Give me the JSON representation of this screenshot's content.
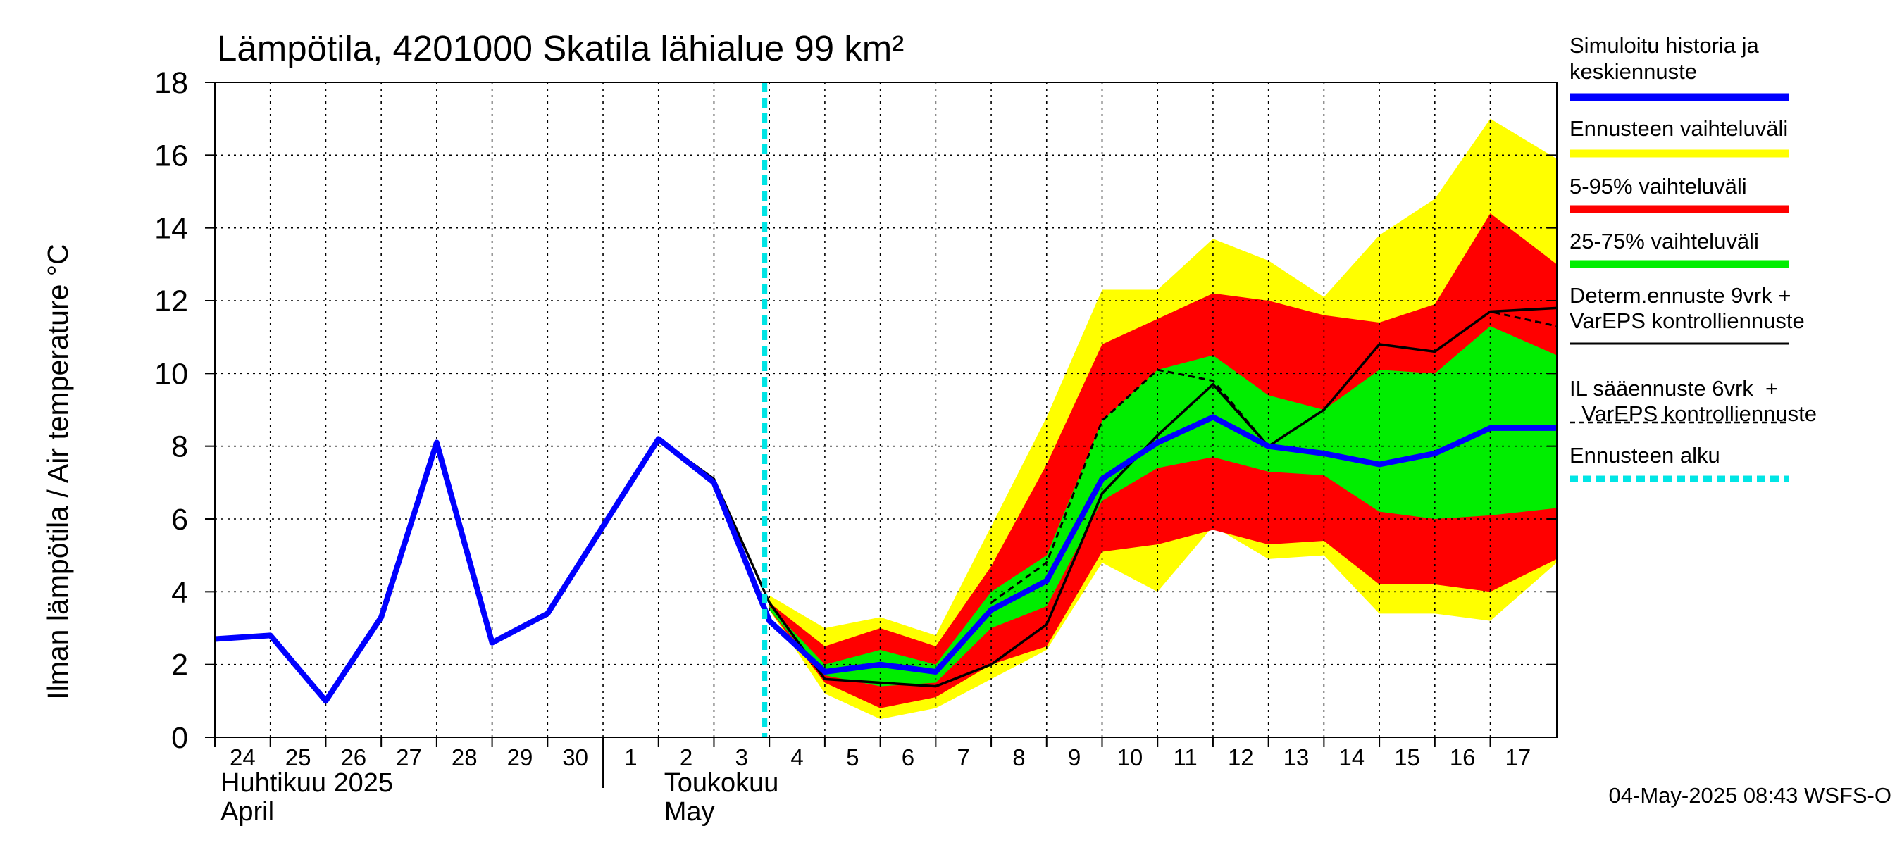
{
  "chart_data": {
    "type": "area",
    "title": "Lämpötila, 4201000 Skatila lähialue 99 km²",
    "ylabel": "Ilman lämpötila / Air temperature    °C",
    "ylim": [
      0,
      18
    ],
    "yticks": [
      "0",
      "2",
      "4",
      "6",
      "8",
      "10",
      "12",
      "14",
      "16",
      "18"
    ],
    "xlim": [
      0,
      24.2
    ],
    "day_labels": [
      "24",
      "25",
      "26",
      "27",
      "28",
      "29",
      "30",
      "1",
      "2",
      "3",
      "4",
      "5",
      "6",
      "7",
      "8",
      "9",
      "10",
      "11",
      "12",
      "13",
      "14",
      "15",
      "16",
      "17"
    ],
    "month_labels": [
      {
        "fi": "Huhtikuu  2025",
        "en": "April",
        "day_index": 0
      },
      {
        "fi": "Toukokuu",
        "en": "May",
        "day_index": 8
      }
    ],
    "forecast_start": 10,
    "grid": true,
    "legend_position": "right",
    "legend": [
      {
        "label": "Simuloitu historia ja\nkeskiennuste",
        "color": "#0000ff",
        "style": "thick"
      },
      {
        "label": "Ennusteen vaihteluväli",
        "color": "#ffff00",
        "style": "thick"
      },
      {
        "label": "5-95% vaihteluväli",
        "color": "#ff0000",
        "style": "thick"
      },
      {
        "label": "25-75% vaihteluväli",
        "color": "#00ee00",
        "style": "thick"
      },
      {
        "label": "Determ.ennuste 9vrk +\nVarEPS kontrolliennuste",
        "color": "#000000",
        "style": "thin"
      },
      {
        "label": "IL sääennuste 6vrk  +\n  VarEPS kontrolliennuste",
        "color": "#000000",
        "style": "dashed"
      },
      {
        "label": "Ennusteen alku",
        "color": "#00e5e5",
        "style": "dotted"
      }
    ],
    "colors": {
      "full_range": "#ffff00",
      "p5_95": "#ff0000",
      "p25_75": "#00ee00",
      "median": "#0000ff",
      "forecast_start": "#00e5e5"
    },
    "bands": {
      "x": [
        10,
        11,
        12,
        13,
        14,
        15,
        16,
        17,
        18,
        19,
        20,
        21,
        22,
        23,
        24.2
      ],
      "full_lower": [
        3.5,
        1.2,
        0.5,
        0.8,
        1.6,
        2.4,
        4.8,
        4.0,
        5.8,
        4.9,
        5.0,
        3.4,
        3.4,
        3.2,
        4.8
      ],
      "full_upper": [
        3.9,
        3.0,
        3.3,
        2.8,
        5.8,
        8.8,
        12.3,
        12.3,
        13.7,
        13.1,
        12.1,
        13.8,
        14.8,
        17.0,
        15.9
      ],
      "p5": [
        3.5,
        1.5,
        0.8,
        1.1,
        2.0,
        2.5,
        5.1,
        5.3,
        5.7,
        5.3,
        5.4,
        4.2,
        4.2,
        4.0,
        4.9
      ],
      "p95": [
        3.7,
        2.5,
        3.0,
        2.5,
        4.7,
        7.5,
        10.8,
        11.5,
        12.2,
        12.0,
        11.6,
        11.4,
        11.9,
        14.4,
        13.0
      ],
      "p25": [
        3.5,
        1.7,
        1.4,
        1.5,
        3.0,
        3.6,
        6.5,
        7.4,
        7.7,
        7.3,
        7.2,
        6.2,
        6.0,
        6.1,
        6.3
      ],
      "p75": [
        3.6,
        2.0,
        2.4,
        2.0,
        4.0,
        5.0,
        8.7,
        10.1,
        10.5,
        9.4,
        9.0,
        10.1,
        10.0,
        11.3,
        10.5
      ]
    },
    "series": [
      {
        "name": "Simuloitu historia ja keskiennuste",
        "x": [
          0,
          1,
          2,
          3,
          4,
          5,
          6,
          7,
          8,
          9,
          10,
          11,
          12,
          13,
          14,
          15,
          16,
          17,
          18,
          19,
          20,
          21,
          22,
          23,
          24.2
        ],
        "y": [
          2.7,
          2.8,
          1.0,
          3.3,
          8.1,
          2.6,
          3.4,
          5.8,
          8.2,
          7.0,
          3.2,
          1.8,
          2.0,
          1.8,
          3.5,
          4.3,
          7.1,
          8.1,
          8.8,
          8.0,
          7.8,
          7.5,
          7.8,
          8.5,
          8.5
        ]
      },
      {
        "name": "Determ.ennuste 9vrk + VarEPS kontrolliennuste",
        "x": [
          8,
          9,
          10,
          11,
          12,
          13,
          14,
          15,
          16,
          17,
          18,
          19,
          20,
          21,
          22,
          23,
          24.2
        ],
        "y": [
          8.2,
          7.1,
          3.7,
          1.6,
          1.5,
          1.4,
          2.0,
          3.1,
          6.7,
          8.3,
          9.7,
          8.0,
          9.0,
          10.8,
          10.6,
          11.7,
          11.8
        ]
      },
      {
        "name": "IL sääennuste 6vrk + VarEPS kontrolliennuste",
        "x": [
          14,
          15,
          16,
          17,
          18,
          19,
          20,
          21,
          22,
          23,
          24.2
        ],
        "y": [
          3.7,
          4.8,
          8.7,
          10.1,
          9.8,
          8.0,
          9.0,
          10.8,
          10.6,
          11.7,
          11.3
        ]
      }
    ]
  },
  "timestamp": "04-May-2025 08:43 WSFS-O"
}
